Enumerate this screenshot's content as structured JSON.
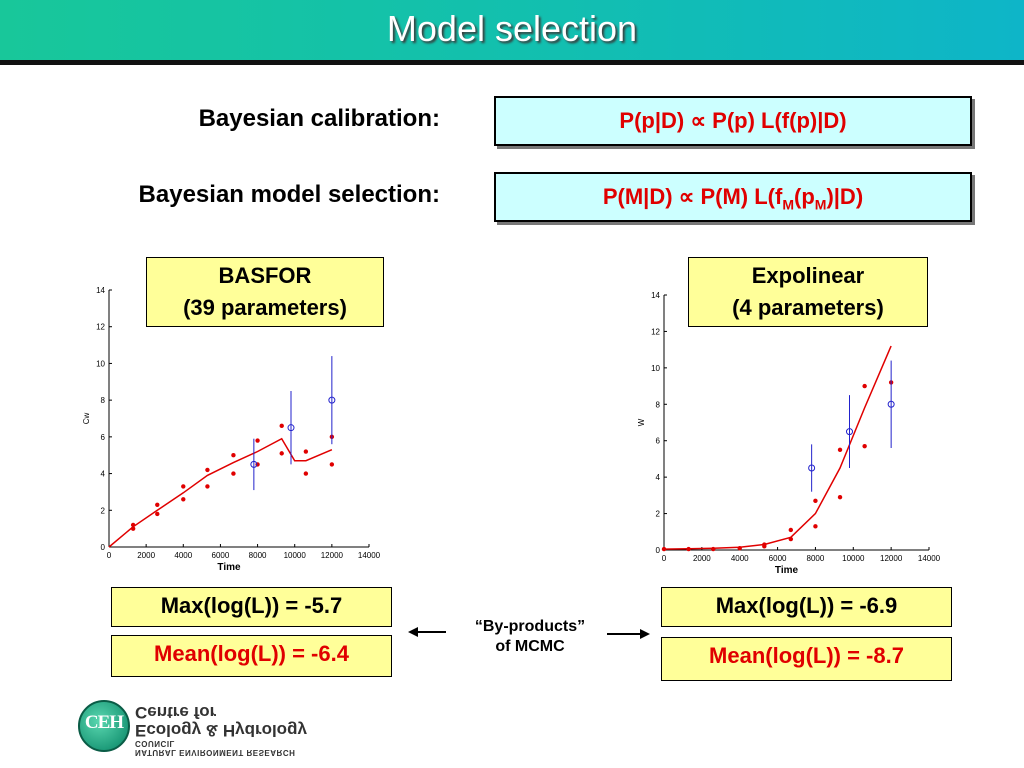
{
  "slide": {
    "title": "Model selection",
    "calibration_label": "Bayesian calibration:",
    "calibration_formula": "P(p|D) ∝ P(p) L(f(p)|D)",
    "selection_label": "Bayesian model selection:",
    "selection_formula": "P(M|D) ∝ P(M) L(f",
    "selection_sub_m": "M",
    "selection_mid": "(p",
    "selection_sub_m2": "M",
    "selection_end": ")|D)",
    "byproducts_line1": "“By-products”",
    "byproducts_line2": "of MCMC"
  },
  "models": {
    "left": {
      "name": "BASFOR",
      "params": "(39 parameters)",
      "max_log_l": "Max(log(L)) = -5.7",
      "mean_log_l": "Mean(log(L)) = -6.4"
    },
    "right": {
      "name": "Expolinear",
      "params": "(4 parameters)",
      "max_log_l": "Max(log(L)) = -6.9",
      "mean_log_l": "Mean(log(L)) = -8.7"
    }
  },
  "logo": {
    "abbr": "CEH",
    "line1": "Centre for",
    "line2": "Ecology & Hydrology",
    "line3": "NATURAL ENVIRONMENT RESEARCH COUNCIL"
  },
  "colors": {
    "red": "#e00000",
    "blue": "#2222cc"
  },
  "chart_data": [
    {
      "type": "scatter",
      "xlabel": "Time",
      "ylabel": "Cw",
      "xlim": [
        0,
        14000
      ],
      "ylim": [
        0,
        14
      ],
      "xticks": [
        "0",
        "2000",
        "4000",
        "6000",
        "8000",
        "10000",
        "12000",
        "14000"
      ],
      "yticks": [
        "0",
        "2",
        "4",
        "6",
        "8",
        "10",
        "12",
        "14"
      ],
      "model_line": [
        [
          0,
          0
        ],
        [
          1300,
          1.1
        ],
        [
          2600,
          2.0
        ],
        [
          4000,
          2.95
        ],
        [
          5300,
          3.9
        ],
        [
          6700,
          4.6
        ],
        [
          8000,
          5.2
        ],
        [
          9300,
          5.9
        ],
        [
          10000,
          4.7
        ],
        [
          10600,
          4.7
        ],
        [
          12000,
          5.3
        ]
      ],
      "ensemble_points": [
        [
          1300,
          1.2
        ],
        [
          1300,
          1.0
        ],
        [
          2600,
          2.3
        ],
        [
          2600,
          1.8
        ],
        [
          4000,
          3.3
        ],
        [
          4000,
          2.6
        ],
        [
          5300,
          4.2
        ],
        [
          5300,
          3.3
        ],
        [
          6700,
          5.0
        ],
        [
          6700,
          4.0
        ],
        [
          8000,
          5.8
        ],
        [
          8000,
          4.5
        ],
        [
          9300,
          6.6
        ],
        [
          9300,
          5.1
        ],
        [
          10600,
          5.2
        ],
        [
          10600,
          4.0
        ],
        [
          12000,
          6.0
        ],
        [
          12000,
          4.5
        ]
      ],
      "observations": [
        [
          7800,
          4.5,
          1.4
        ],
        [
          9800,
          6.5,
          2.0
        ],
        [
          12000,
          8.0,
          2.4
        ]
      ]
    },
    {
      "type": "scatter",
      "xlabel": "Time",
      "ylabel": "W",
      "xlim": [
        0,
        14000
      ],
      "ylim": [
        0,
        14
      ],
      "xticks": [
        "0",
        "2000",
        "4000",
        "6000",
        "8000",
        "10000",
        "12000",
        "14000"
      ],
      "yticks": [
        "0",
        "2",
        "4",
        "6",
        "8",
        "10",
        "12",
        "14"
      ],
      "model_line": [
        [
          0,
          0.05
        ],
        [
          1300,
          0.07
        ],
        [
          2600,
          0.1
        ],
        [
          4000,
          0.15
        ],
        [
          5300,
          0.3
        ],
        [
          6700,
          0.7
        ],
        [
          8000,
          2.0
        ],
        [
          9300,
          4.5
        ],
        [
          10600,
          7.8
        ],
        [
          12000,
          11.2
        ]
      ],
      "ensemble_points": [
        [
          0,
          0.05
        ],
        [
          1300,
          0.05
        ],
        [
          2600,
          0.05
        ],
        [
          4000,
          0.1
        ],
        [
          5300,
          0.2
        ],
        [
          5300,
          0.3
        ],
        [
          6700,
          0.6
        ],
        [
          6700,
          1.1
        ],
        [
          8000,
          1.3
        ],
        [
          8000,
          2.7
        ],
        [
          9300,
          2.9
        ],
        [
          9300,
          5.5
        ],
        [
          10600,
          5.7
        ],
        [
          10600,
          9.0
        ],
        [
          12000,
          9.2
        ]
      ],
      "observations": [
        [
          7800,
          4.5,
          1.3
        ],
        [
          9800,
          6.5,
          2.0
        ],
        [
          12000,
          8.0,
          2.4
        ]
      ]
    }
  ]
}
